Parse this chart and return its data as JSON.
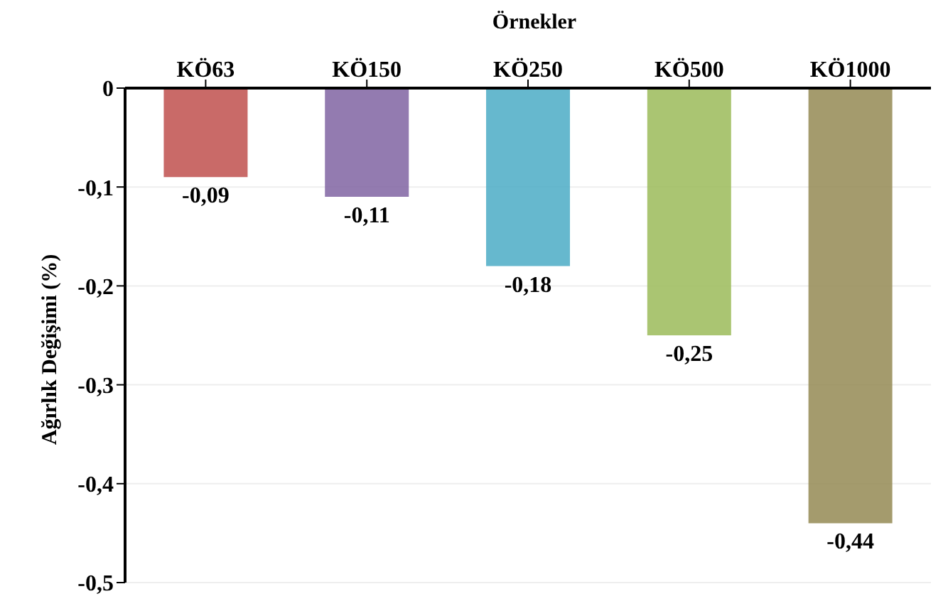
{
  "chart_data": {
    "type": "bar",
    "xlabel": "Örnekler",
    "ylabel": "Ağırlık Değişimi (%)",
    "categories": [
      "KÖ63",
      "KÖ150",
      "KÖ250",
      "KÖ500",
      "KÖ1000"
    ],
    "values": [
      -0.09,
      -0.11,
      -0.18,
      -0.25,
      -0.44
    ],
    "value_labels": [
      "-0,09",
      "-0,11",
      "-0,18",
      "-0,25",
      "-0,44"
    ],
    "colors": [
      "#c0504d",
      "#8064a2",
      "#4bacc6",
      "#9bbb59",
      "#948a54"
    ],
    "ylim": [
      -0.5,
      0
    ],
    "yticks": [
      {
        "value": 0,
        "label": "0"
      },
      {
        "value": -0.1,
        "label": "-0,1"
      },
      {
        "value": -0.2,
        "label": "-0,2"
      },
      {
        "value": -0.3,
        "label": "-0,3"
      },
      {
        "value": -0.4,
        "label": "-0,4"
      },
      {
        "value": -0.5,
        "label": "-0,5"
      }
    ],
    "grid": "y",
    "legend": false
  }
}
